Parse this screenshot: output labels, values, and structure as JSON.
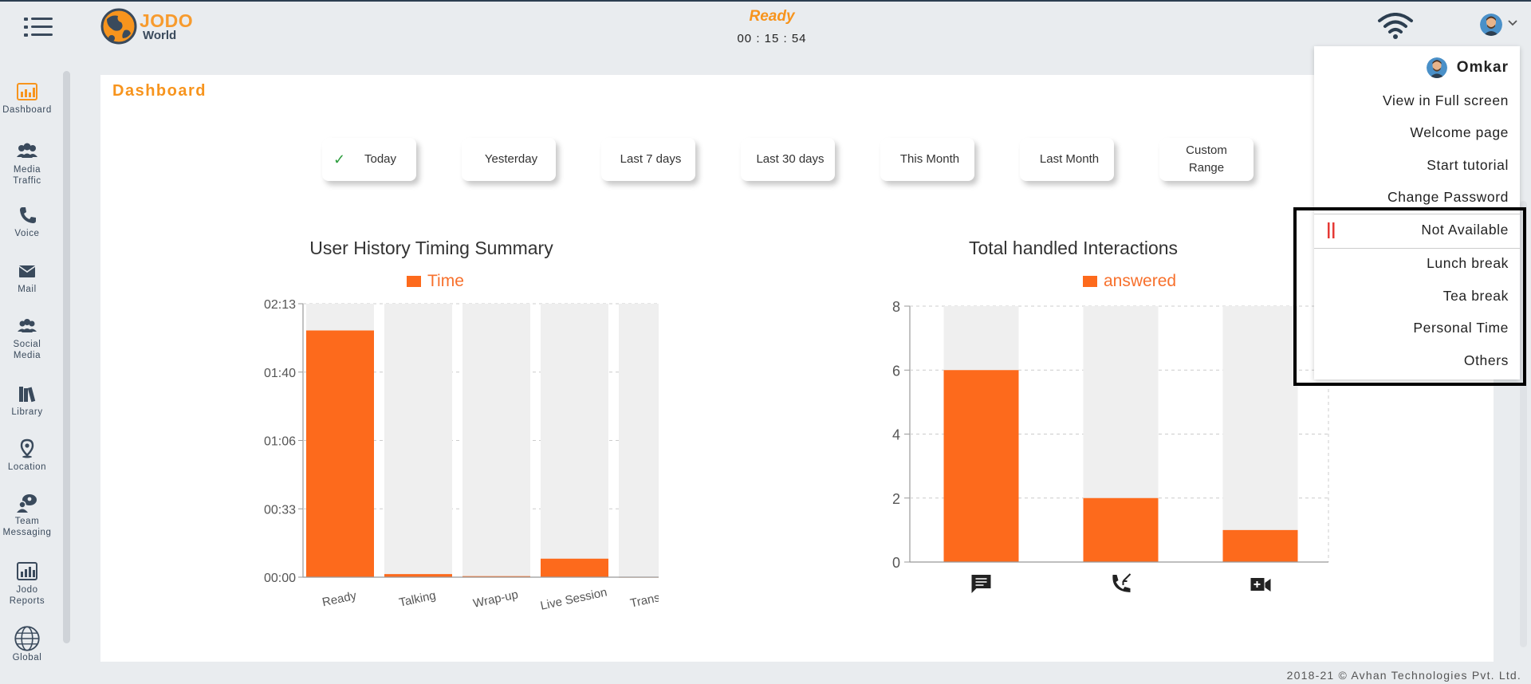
{
  "header": {
    "brand_line1": "JODO",
    "brand_line2": "World",
    "status": "Ready",
    "timer": "00 : 15 : 54"
  },
  "sidebar": {
    "items": [
      {
        "id": "dashboard",
        "label1": "Dashboard",
        "label2": "",
        "icon": "dashboard-icon"
      },
      {
        "id": "media-traffic",
        "label1": "Media",
        "label2": "Traffic",
        "icon": "people-group-icon"
      },
      {
        "id": "voice",
        "label1": "Voice",
        "label2": "",
        "icon": "phone-icon"
      },
      {
        "id": "mail",
        "label1": "Mail",
        "label2": "",
        "icon": "envelope-icon"
      },
      {
        "id": "social-media",
        "label1": "Social",
        "label2": "Media",
        "icon": "users-icon"
      },
      {
        "id": "library",
        "label1": "Library",
        "label2": "",
        "icon": "books-icon"
      },
      {
        "id": "location",
        "label1": "Location",
        "label2": "",
        "icon": "map-pin-icon"
      },
      {
        "id": "team-messaging",
        "label1": "Team",
        "label2": "Messaging",
        "icon": "chat-people-icon"
      },
      {
        "id": "jodo-reports",
        "label1": "Jodo",
        "label2": "Reports",
        "icon": "report-chart-icon"
      },
      {
        "id": "global",
        "label1": "Global",
        "label2": "",
        "icon": "globe-icon"
      }
    ]
  },
  "dashboard": {
    "title": "Dashboard",
    "ranges": [
      {
        "label": "Today",
        "active": true
      },
      {
        "label": "Yesterday",
        "active": false
      },
      {
        "label": "Last 7 days",
        "active": false
      },
      {
        "label": "Last 30 days",
        "active": false
      },
      {
        "label": "This Month",
        "active": false
      },
      {
        "label": "Last Month",
        "active": false
      },
      {
        "label": "Custom Range",
        "active": false
      }
    ]
  },
  "chart_data": [
    {
      "type": "bar",
      "title": "User History Timing Summary",
      "series": [
        {
          "name": "Time",
          "values": [
            "02:00",
            "00:01",
            "00:00",
            "00:09",
            "00:00"
          ]
        }
      ],
      "categories": [
        "Ready",
        "Talking",
        "Wrap-up",
        "Live Session",
        "Transfer"
      ],
      "y_ticks": [
        "00:00",
        "00:33",
        "01:06",
        "01:40",
        "02:13"
      ],
      "ylim_seconds": [
        0,
        133
      ],
      "values_seconds": [
        120,
        1.5,
        0.5,
        9,
        0
      ],
      "color": "#fd6a1c",
      "grid": true,
      "legend": "top"
    },
    {
      "type": "bar",
      "title": "Total handled Interactions",
      "series": [
        {
          "name": "answered",
          "values": [
            6,
            2,
            1
          ]
        }
      ],
      "categories": [
        "chat-icon",
        "incoming-call-icon",
        "video-call-icon"
      ],
      "y_ticks": [
        "0",
        "2",
        "4",
        "6",
        "8"
      ],
      "ylim": [
        0,
        8
      ],
      "color": "#fd6a1c",
      "grid": true,
      "legend": "top"
    }
  ],
  "user_menu": {
    "user_name": "Omkar",
    "items": [
      "View in Full screen",
      "Welcome page",
      "Start tutorial",
      "Change Password"
    ],
    "status_items": [
      "Not Available",
      "Lunch break",
      "Tea break",
      "Personal Time",
      "Others"
    ]
  },
  "footer": {
    "text": "2018-21 © Avhan Technologies Pvt. Ltd."
  },
  "colors": {
    "accent": "#f7941d",
    "bar": "#fd6a1c",
    "bar_track": "#efefef"
  }
}
